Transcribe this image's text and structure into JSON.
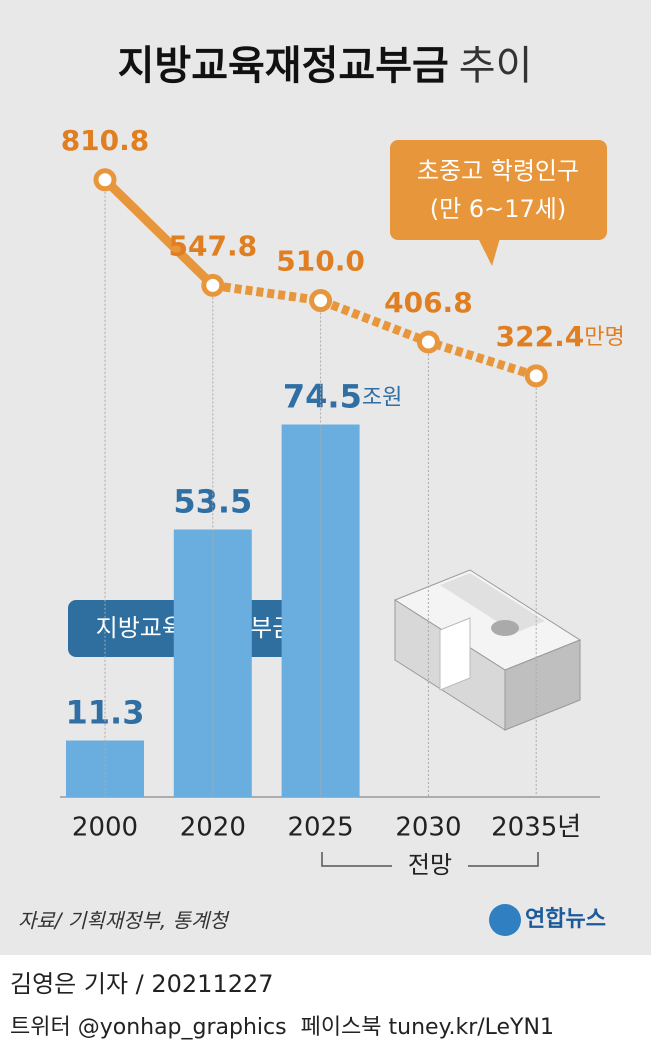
{
  "chart_data": {
    "type": "bar-line",
    "title_main": "지방교육재정교부금",
    "title_rest": "추이",
    "categories": [
      "2000",
      "2020",
      "2025",
      "2030",
      "2035년"
    ],
    "ylim": [
      0,
      100
    ],
    "y2lim": [
      200,
      900
    ],
    "series": [
      {
        "name": "지방교육재정교부금",
        "type": "bar",
        "color": "#6aaee0",
        "label_color": "#2f6fa4",
        "unit": "조원",
        "values": [
          11.3,
          53.5,
          74.5,
          null,
          null
        ]
      },
      {
        "name": "초중고 학령인구",
        "note": "(만 6~17세)",
        "type": "line",
        "axis": "y2",
        "color": "#e8963c",
        "label_color": "#e07f22",
        "unit": "만명",
        "values": [
          810.8,
          547.8,
          510.0,
          406.8,
          322.4
        ],
        "value_labels": [
          "810.8",
          "547.8",
          "510.0",
          "406.8",
          "322.4"
        ]
      }
    ],
    "projection_label": "전망",
    "source": "자료/ 기획재정부, 통계청",
    "logo": "연합뉴스",
    "byline": "김영은 기자 / 20211227",
    "social": "트위터 @yonhap_graphics  페이스북 tuney.kr/LeYN1"
  }
}
